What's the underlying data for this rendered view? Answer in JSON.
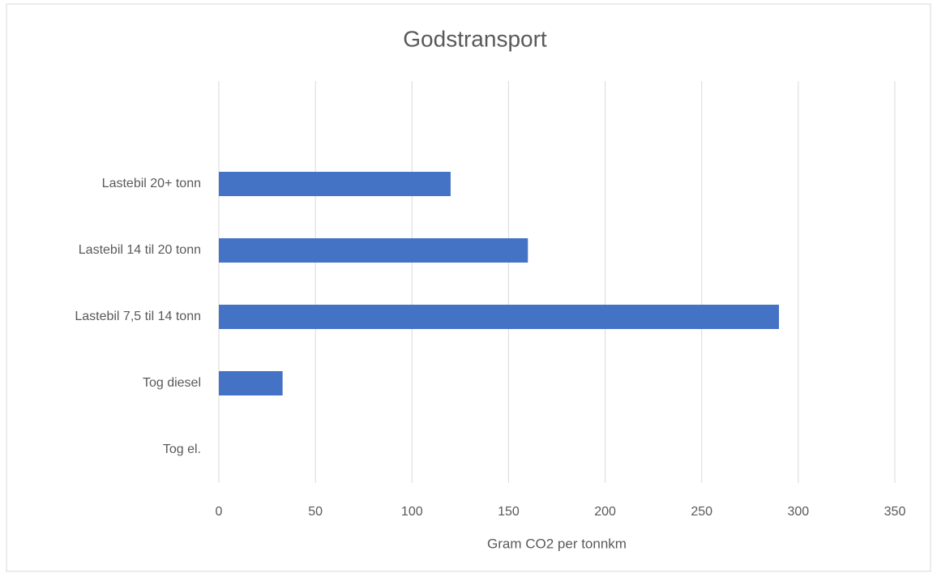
{
  "chart_data": {
    "type": "bar",
    "orientation": "horizontal",
    "title": "Godstransport",
    "xlabel": "Gram  CO2 per tonnkm",
    "categories": [
      "Lastebil 20+ tonn",
      "Lastebil 14 til 20 tonn",
      "Lastebil 7,5 til 14 tonn",
      "Tog diesel",
      "Tog el."
    ],
    "values": [
      120,
      160,
      290,
      33,
      0
    ],
    "color": "#4472c4",
    "xlim": [
      0,
      350
    ],
    "xticks": [
      0,
      50,
      100,
      150,
      200,
      250,
      300,
      350
    ],
    "grid": true
  }
}
